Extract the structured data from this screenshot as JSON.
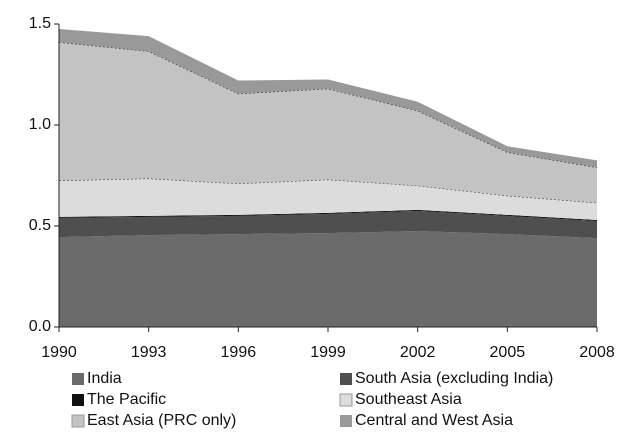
{
  "chart_data": {
    "type": "stacked_area",
    "x": [
      1990,
      1993,
      1996,
      1999,
      2002,
      2005,
      2008
    ],
    "xlim": [
      1990,
      2008
    ],
    "xticks": [
      1990,
      1993,
      1996,
      1999,
      2002,
      2005,
      2008
    ],
    "ylim": [
      0,
      1.5
    ],
    "yticks": [
      {
        "value": 0,
        "label": "0.0"
      },
      0.5,
      {
        "value": 1,
        "label": "1.0"
      },
      1.5
    ],
    "series": [
      {
        "name": "India",
        "color": "#6b6b6b",
        "values": [
          0.445,
          0.455,
          0.46,
          0.465,
          0.475,
          0.46,
          0.44
        ]
      },
      {
        "name": "South Asia (excluding India)",
        "color": "#4f4f4f",
        "values": [
          0.095,
          0.09,
          0.09,
          0.095,
          0.1,
          0.09,
          0.085
        ]
      },
      {
        "name": "The Pacific",
        "color": "#111111",
        "values": [
          0.005,
          0.005,
          0.005,
          0.005,
          0.005,
          0.005,
          0.005
        ]
      },
      {
        "name": "Southeast Asia",
        "color": "#dcdcdc",
        "values": [
          0.18,
          0.185,
          0.155,
          0.165,
          0.12,
          0.095,
          0.085
        ]
      },
      {
        "name": "East Asia (PRC only)",
        "color": "#c3c3c3",
        "values": [
          0.685,
          0.63,
          0.445,
          0.45,
          0.37,
          0.215,
          0.175
        ]
      },
      {
        "name": "Central and West Asia",
        "color": "#999999",
        "values": [
          0.065,
          0.075,
          0.065,
          0.045,
          0.045,
          0.03,
          0.035
        ]
      }
    ]
  }
}
